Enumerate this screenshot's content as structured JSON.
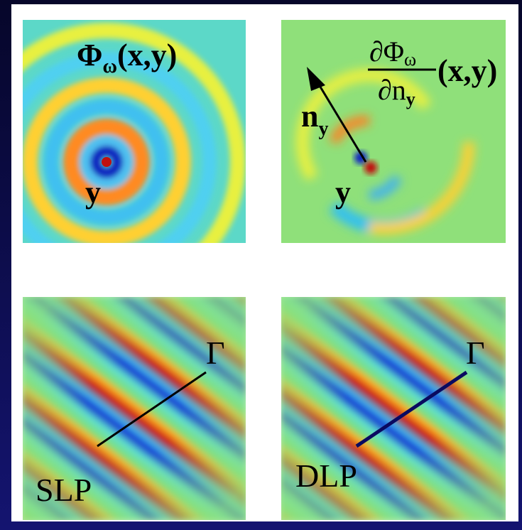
{
  "panels": [
    {
      "title": {
        "main": "Φ",
        "sub": "ω",
        "args": "(x,y)"
      },
      "point": "y"
    },
    {
      "title": {
        "num": "∂Φ",
        "num_sub": "ω",
        "den": "∂n",
        "den_sub": "y",
        "args": "(x,y)"
      },
      "normal": {
        "main": "n",
        "sub": "y"
      },
      "point": "y"
    },
    {
      "curve": "Γ",
      "label": "SLP"
    },
    {
      "curve": "Γ",
      "label": "DLP"
    }
  ]
}
